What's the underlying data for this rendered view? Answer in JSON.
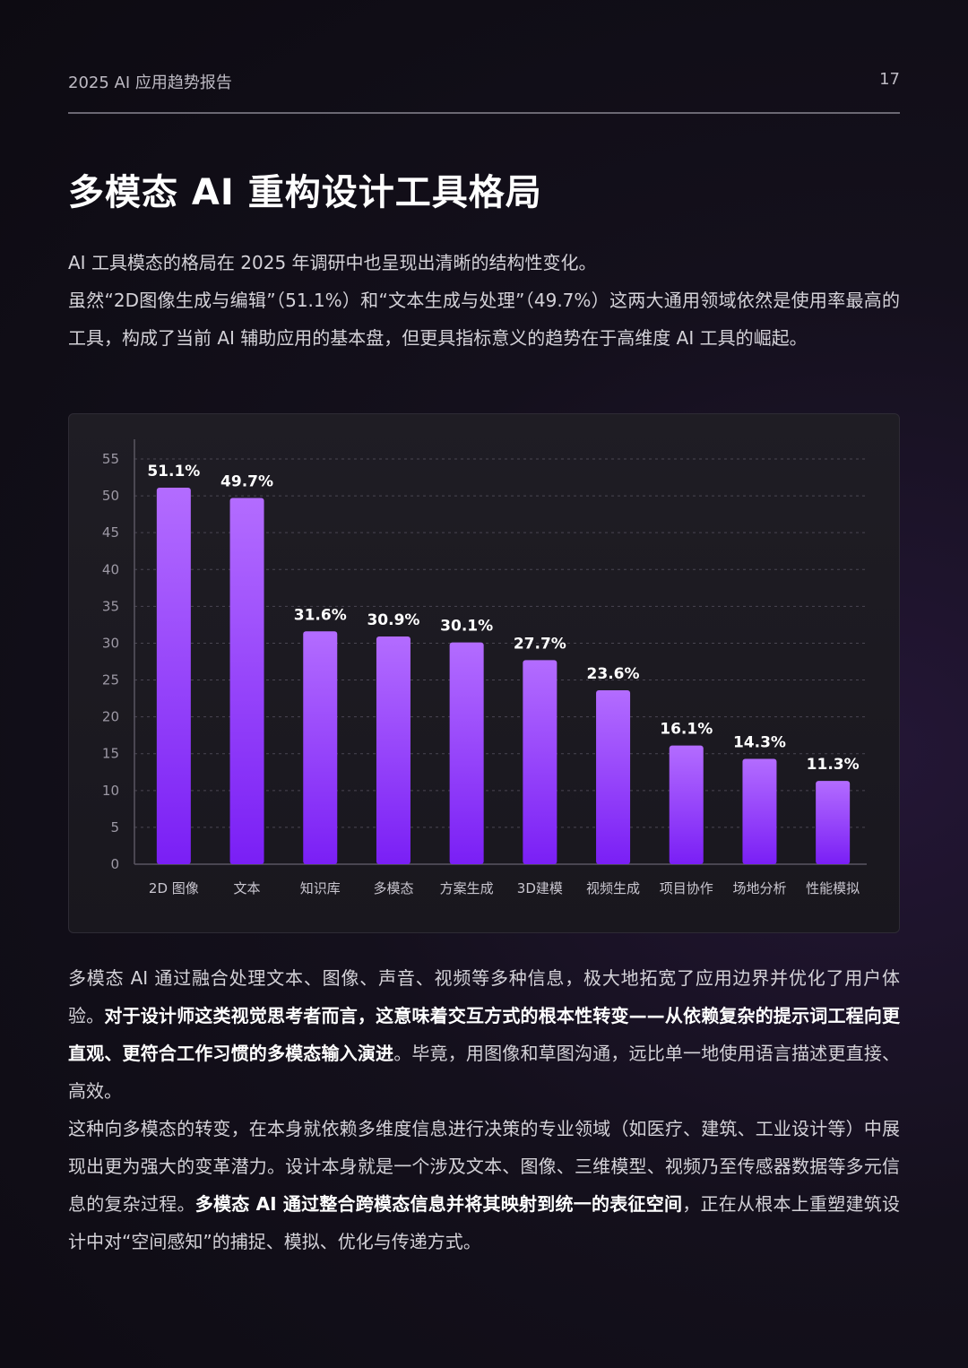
{
  "header": {
    "report_title": "2025 AI 应用趋势报告",
    "page_number": "17"
  },
  "title": "多模态 AI 重构设计工具格局",
  "intro": {
    "line1": "AI 工具模态的格局在 2025 年调研中也呈现出清晰的结构性变化。",
    "line2": "虽然“2D图像生成与编辑”（51.1%）和“文本生成与处理”（49.7%）这两大通用领域依然是使用率最高的工具，构成了当前 AI 辅助应用的基本盘，但更具指标意义的趋势在于高维度 AI 工具的崛起。"
  },
  "chart_data": {
    "type": "bar",
    "categories": [
      "2D 图像",
      "文本",
      "知识库",
      "多模态",
      "方案生成",
      "3D建模",
      "视频生成",
      "项目协作",
      "场地分析",
      "性能模拟"
    ],
    "values": [
      51.1,
      49.7,
      31.6,
      30.9,
      30.1,
      27.7,
      23.6,
      16.1,
      14.3,
      11.3
    ],
    "value_labels": [
      "51.1%",
      "49.7%",
      "31.6%",
      "30.9%",
      "30.1%",
      "27.7%",
      "23.6%",
      "16.1%",
      "14.3%",
      "11.3%"
    ],
    "yticks": [
      0,
      5,
      10,
      15,
      20,
      25,
      30,
      35,
      40,
      45,
      50,
      55
    ],
    "ylim": [
      0,
      55
    ],
    "grid": true,
    "bar_color_top": "#b36cff",
    "bar_color_bottom": "#7a1ff5"
  },
  "body": {
    "p1_part1": "多模态 AI 通过融合处理文本、图像、声音、视频等多种信息，极大地拓宽了应用边界并优化了用户体验。",
    "p1_bold": "对于设计师这类视觉思考者而言，这意味着交互方式的根本性转变——从依赖复杂的提示词工程向更直观、更符合工作习惯的多模态输入演进",
    "p1_part2": "。毕竟，用图像和草图沟通，远比单一地使用语言描述更直接、高效。",
    "p2_part1": "这种向多模态的转变，在本身就依赖多维度信息进行决策的专业领域（如医疗、建筑、工业设计等）中展现出更为强大的变革潜力。设计本身就是一个涉及文本、图像、三维模型、视频乃至传感器数据等多元信息的复杂过程。",
    "p2_bold": "多模态 AI 通过整合跨模态信息并将其映射到统一的表征空间",
    "p2_part2": "，正在从根本上重塑建筑设计中对“空间感知”的捕捉、模拟、优化与传递方式。"
  }
}
